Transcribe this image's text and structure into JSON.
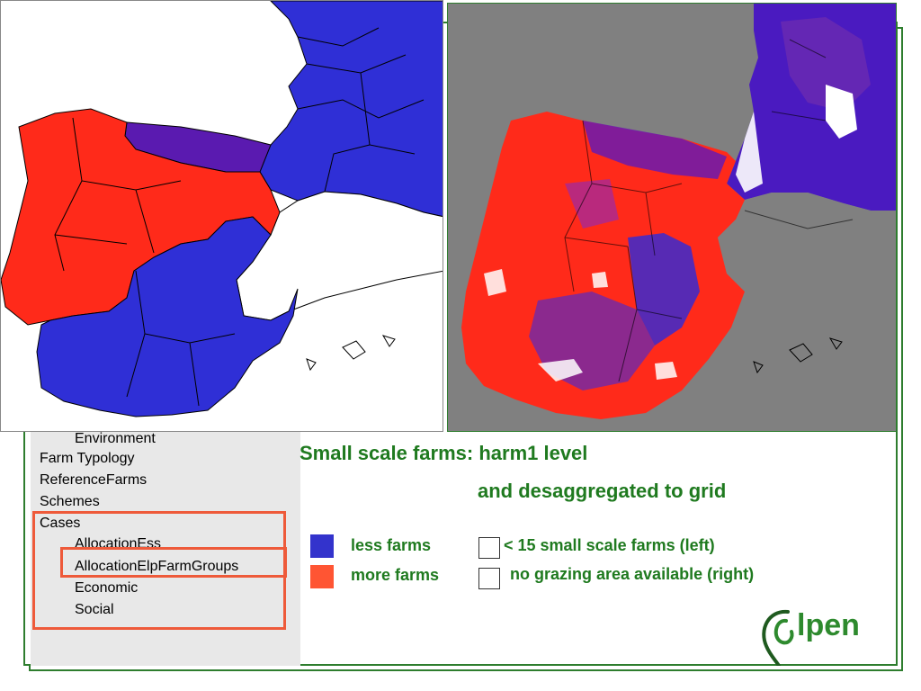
{
  "sidebar": {
    "items": [
      {
        "label": "Environment",
        "level": 1
      },
      {
        "label": "Farm Typology",
        "level": 0
      },
      {
        "label": "ReferenceFarms",
        "level": 0
      },
      {
        "label": "Schemes",
        "level": 0
      },
      {
        "label": "Cases",
        "level": 0
      },
      {
        "label": "AllocationEss",
        "level": 1
      },
      {
        "label": "AllocationElpFarmGroups",
        "level": 1
      },
      {
        "label": "Economic",
        "level": 1
      },
      {
        "label": "Social",
        "level": 1
      }
    ]
  },
  "titles": {
    "line1": "Small scale farms: harm1 level",
    "line2": "and desaggregated to grid"
  },
  "legend": {
    "less": {
      "label": "less farms",
      "color": "#3333cc"
    },
    "more": {
      "label": "more farms",
      "color": "#ff5533"
    },
    "note_left": "< 15 small scale farms (left)",
    "note_right": "no grazing area available (right)"
  },
  "colors": {
    "blue": "#2f2fd6",
    "red": "#ff2a1a",
    "purple": "#5a1ab0",
    "grey": "#808080",
    "frame": "#2e7d2e"
  },
  "logo": {
    "text": "elpen"
  }
}
